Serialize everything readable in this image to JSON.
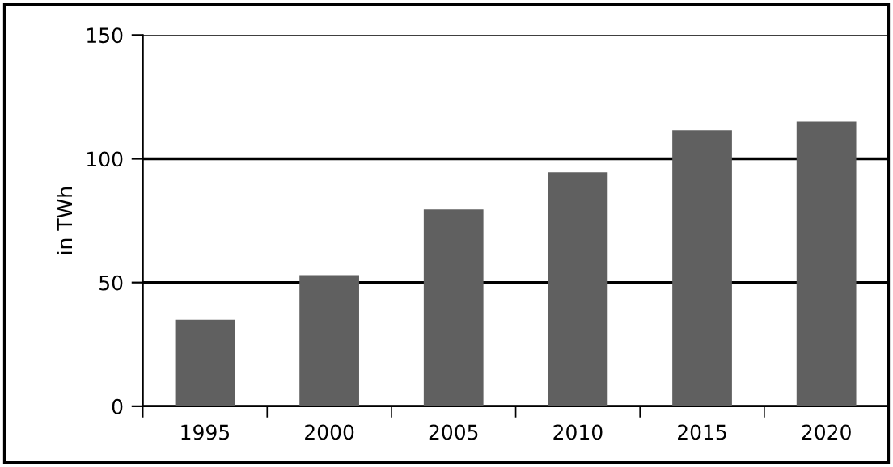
{
  "chart_data": {
    "type": "bar",
    "ylabel": "in TWh",
    "categories": [
      "1995",
      "2000",
      "2005",
      "2010",
      "2015",
      "2020"
    ],
    "values": [
      35,
      53,
      79.5,
      94.5,
      111.5,
      115
    ],
    "color": "#606060",
    "ylim": [
      0,
      150
    ],
    "yticks": [
      0,
      50,
      100,
      150
    ],
    "grid": "y"
  }
}
